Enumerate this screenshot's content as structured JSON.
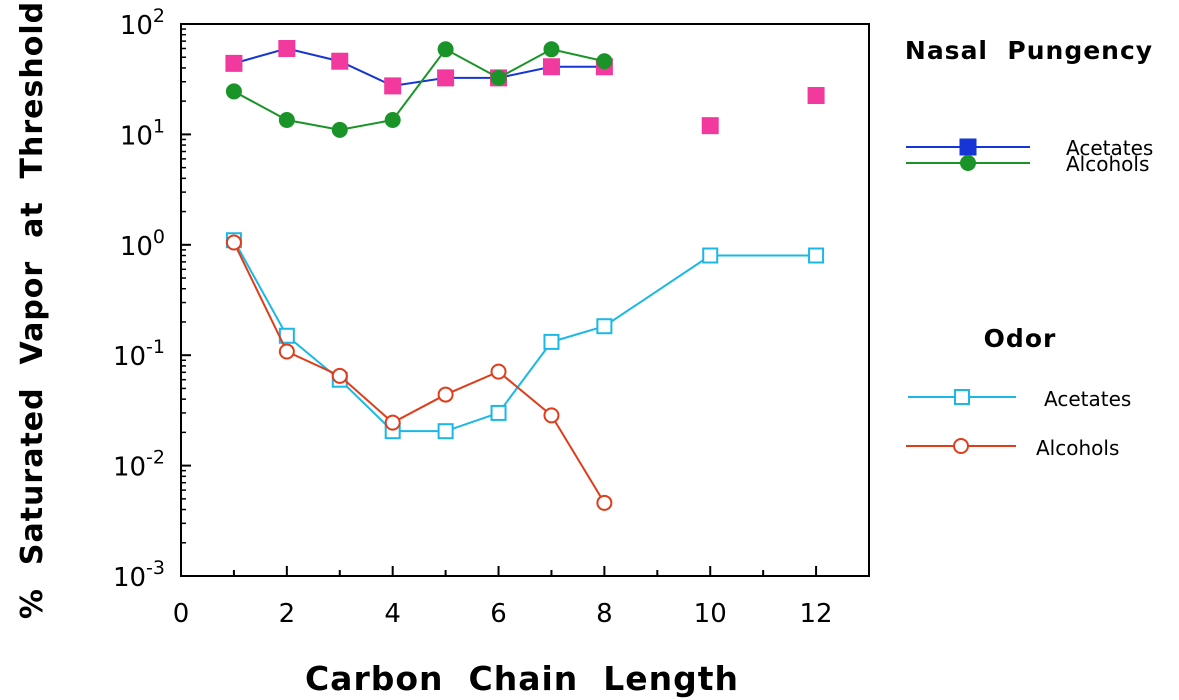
{
  "chart_data": {
    "type": "line",
    "title": "",
    "xlabel": "Carbon  Chain  Length",
    "ylabel": "%  Saturated  Vapor  at  Threshold",
    "xlim": [
      0,
      13
    ],
    "ylim": [
      0.001,
      100
    ],
    "yscale": "log",
    "xticks": [
      0,
      2,
      4,
      6,
      8,
      10,
      12
    ],
    "yticks": [
      {
        "value": 100,
        "base": "10",
        "exp": "2"
      },
      {
        "value": 10,
        "base": "10",
        "exp": "1"
      },
      {
        "value": 1,
        "base": "10",
        "exp": "0"
      },
      {
        "value": 0.1,
        "base": "10",
        "exp": "-1"
      },
      {
        "value": 0.01,
        "base": "10",
        "exp": "-2"
      },
      {
        "value": 0.001,
        "base": "10",
        "exp": "-3"
      }
    ],
    "grid": false,
    "legend_groups": [
      {
        "title": "Nasal  Pungency",
        "entries": [
          "Acetates",
          "Alcohols"
        ]
      },
      {
        "title": "Odor",
        "entries": [
          "Acetates",
          "Alcohols"
        ]
      }
    ],
    "series": [
      {
        "name": "Acetates",
        "group": "Nasal  Pungency",
        "color": "#1535d6",
        "marker": "filled-square",
        "marker_color": "#f2399e",
        "x": [
          1,
          2,
          3,
          4,
          5,
          6,
          7,
          8
        ],
        "y": [
          44,
          60,
          46,
          27.5,
          32.5,
          32.5,
          41,
          41
        ]
      },
      {
        "name": "Acetates (unconnected)",
        "group": "Nasal  Pungency",
        "color": "#f2399e",
        "marker": "filled-square",
        "marker_color": "#f2399e",
        "line": false,
        "x": [
          10,
          12
        ],
        "y": [
          12,
          22.5
        ]
      },
      {
        "name": "Alcohols",
        "group": "Nasal  Pungency",
        "color": "#1a9428",
        "marker": "filled-circle",
        "x": [
          1,
          2,
          3,
          4,
          5,
          6,
          7,
          8
        ],
        "y": [
          24.5,
          13.5,
          11,
          13.5,
          59,
          32.5,
          59,
          46
        ]
      },
      {
        "name": "Acetates",
        "group": "Odor",
        "color": "#1ab8e6",
        "marker": "open-square",
        "x": [
          1,
          2,
          3,
          4,
          5,
          6,
          7,
          8,
          10,
          12
        ],
        "y": [
          1.1,
          0.15,
          0.06,
          0.0205,
          0.0205,
          0.03,
          0.132,
          0.183,
          0.8,
          0.8
        ]
      },
      {
        "name": "Alcohols",
        "group": "Odor",
        "color": "#e03c1a",
        "marker": "open-circle",
        "x": [
          1,
          2,
          3,
          4,
          5,
          6,
          7,
          8
        ],
        "y": [
          1.05,
          0.108,
          0.065,
          0.0245,
          0.044,
          0.071,
          0.0285,
          0.0046
        ]
      }
    ]
  }
}
